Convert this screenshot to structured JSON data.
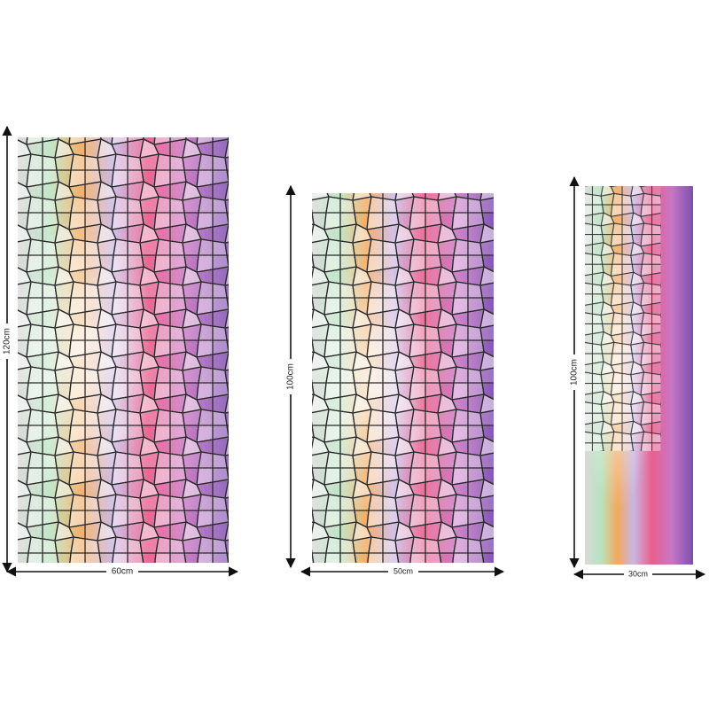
{
  "panels": [
    {
      "width": "60cm",
      "height": "120cm"
    },
    {
      "width": "50cm",
      "height": "100cm"
    },
    {
      "width": "30cm",
      "height": "100cm"
    }
  ]
}
